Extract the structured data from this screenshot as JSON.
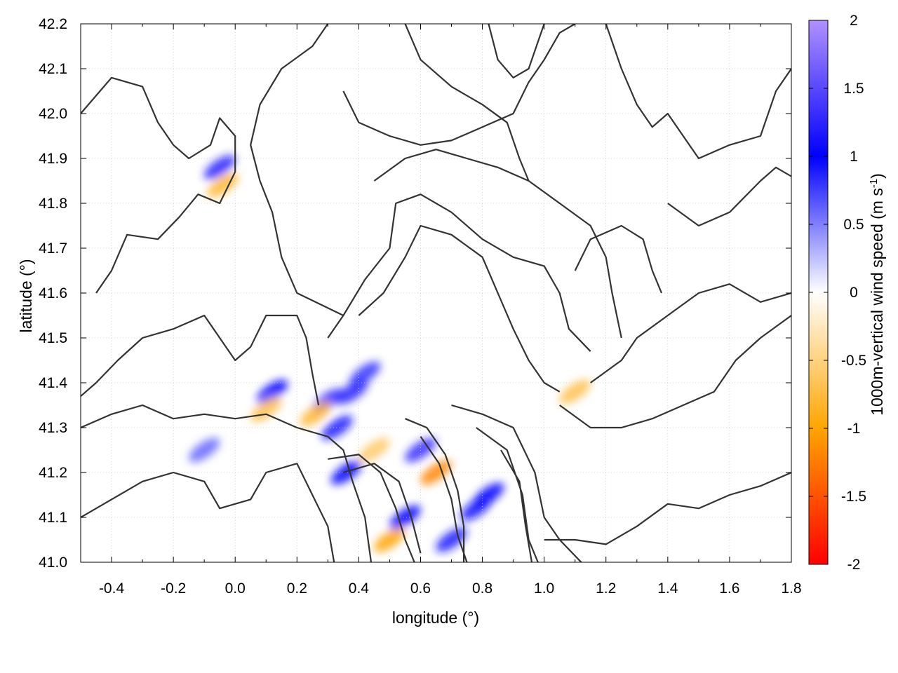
{
  "chart_data": {
    "type": "heatmap",
    "title": "",
    "xlabel": "longitude (°)",
    "ylabel": "latitude (°)",
    "xlim": [
      -0.5,
      1.8
    ],
    "ylim": [
      41.0,
      42.2
    ],
    "x_ticks": [
      "-0.4",
      "-0.2",
      "0.0",
      "0.2",
      "0.4",
      "0.6",
      "0.8",
      "1.0",
      "1.2",
      "1.4",
      "1.6",
      "1.8"
    ],
    "x_tick_values": [
      -0.4,
      -0.2,
      0.0,
      0.2,
      0.4,
      0.6,
      0.8,
      1.0,
      1.2,
      1.4,
      1.6,
      1.8
    ],
    "y_ticks": [
      "41.0",
      "41.1",
      "41.2",
      "41.3",
      "41.4",
      "41.5",
      "41.6",
      "41.7",
      "41.8",
      "41.9",
      "42.0",
      "42.1",
      "42.2"
    ],
    "y_tick_values": [
      41.0,
      41.1,
      41.2,
      41.3,
      41.4,
      41.5,
      41.6,
      41.7,
      41.8,
      41.9,
      42.0,
      42.1,
      42.2
    ],
    "grid": true,
    "colorbar": {
      "label_main": "1000m-vertical wind speed (m s",
      "label_sup": "-1",
      "label_end": ")",
      "range": [
        -2,
        2
      ],
      "tick_labels": [
        "2",
        "1.5",
        "1",
        "0.5",
        "0",
        "-0.5",
        "-1",
        "-1.5",
        "-2"
      ],
      "tick_values": [
        2,
        1.5,
        1,
        0.5,
        0,
        -0.5,
        -1,
        -1.5,
        -2
      ],
      "colors": [
        "#ff0000",
        "#ffa500",
        "#ffffff",
        "#0000ff",
        "#b190ff"
      ],
      "placement": "right"
    },
    "overlay": "terrain elevation contours (black)",
    "features": [
      {
        "lon": 0.33,
        "lat": 41.3,
        "w": 0.9
      },
      {
        "lon": 0.3,
        "lat": 41.36,
        "w": 1.3
      },
      {
        "lon": 0.38,
        "lat": 41.38,
        "w": 1.2
      },
      {
        "lon": 0.42,
        "lat": 41.42,
        "w": 0.8
      },
      {
        "lon": 0.36,
        "lat": 41.2,
        "w": 1.0
      },
      {
        "lon": 0.6,
        "lat": 41.25,
        "w": 1.3
      },
      {
        "lon": 0.65,
        "lat": 41.2,
        "w": -1.2
      },
      {
        "lon": 0.5,
        "lat": 41.05,
        "w": -1.0
      },
      {
        "lon": 0.55,
        "lat": 41.1,
        "w": 1.0
      },
      {
        "lon": 0.82,
        "lat": 41.15,
        "w": 1.0
      },
      {
        "lon": 0.78,
        "lat": 41.12,
        "w": 1.1
      },
      {
        "lon": -0.05,
        "lat": 41.88,
        "w": 1.2
      },
      {
        "lon": -0.04,
        "lat": 41.84,
        "w": -0.8
      },
      {
        "lon": 0.12,
        "lat": 41.38,
        "w": 1.0
      },
      {
        "lon": 0.1,
        "lat": 41.34,
        "w": -0.7
      },
      {
        "lon": -0.1,
        "lat": 41.25,
        "w": 0.6
      },
      {
        "lon": 1.1,
        "lat": 41.38,
        "w": -0.7
      },
      {
        "lon": 0.26,
        "lat": 41.33,
        "w": -0.8
      },
      {
        "lon": 0.7,
        "lat": 41.05,
        "w": 0.9
      },
      {
        "lon": 0.45,
        "lat": 41.25,
        "w": -0.6
      }
    ],
    "contours": [
      [
        [
          -0.5,
          42.0
        ],
        [
          -0.4,
          42.08
        ],
        [
          -0.3,
          42.06
        ],
        [
          -0.25,
          41.98
        ],
        [
          -0.2,
          41.93
        ],
        [
          -0.15,
          41.9
        ],
        [
          -0.08,
          41.93
        ],
        [
          -0.05,
          41.99
        ],
        [
          0.0,
          41.95
        ],
        [
          0.0,
          41.87
        ],
        [
          -0.05,
          41.8
        ],
        [
          -0.12,
          41.82
        ],
        [
          -0.18,
          41.77
        ],
        [
          -0.25,
          41.72
        ],
        [
          -0.35,
          41.73
        ],
        [
          -0.4,
          41.65
        ],
        [
          -0.45,
          41.6
        ]
      ],
      [
        [
          -0.5,
          41.3
        ],
        [
          -0.4,
          41.33
        ],
        [
          -0.3,
          41.35
        ],
        [
          -0.2,
          41.32
        ],
        [
          -0.1,
          41.33
        ],
        [
          0.0,
          41.32
        ],
        [
          0.1,
          41.33
        ],
        [
          0.2,
          41.3
        ],
        [
          0.3,
          41.28
        ],
        [
          0.35,
          41.25
        ],
        [
          0.38,
          41.18
        ],
        [
          0.42,
          41.1
        ],
        [
          0.44,
          41.0
        ]
      ],
      [
        [
          -0.5,
          41.1
        ],
        [
          -0.4,
          41.14
        ],
        [
          -0.3,
          41.18
        ],
        [
          -0.2,
          41.2
        ],
        [
          -0.1,
          41.18
        ],
        [
          -0.05,
          41.12
        ],
        [
          0.05,
          41.14
        ],
        [
          0.1,
          41.2
        ],
        [
          0.2,
          41.22
        ],
        [
          0.25,
          41.15
        ],
        [
          0.3,
          41.08
        ],
        [
          0.32,
          41.0
        ]
      ],
      [
        [
          0.3,
          41.23
        ],
        [
          0.4,
          41.24
        ],
        [
          0.47,
          41.2
        ],
        [
          0.52,
          41.12
        ],
        [
          0.55,
          41.05
        ],
        [
          0.58,
          41.0
        ]
      ],
      [
        [
          0.35,
          41.2
        ],
        [
          0.45,
          41.22
        ],
        [
          0.53,
          41.18
        ],
        [
          0.57,
          41.1
        ],
        [
          0.6,
          41.02
        ]
      ],
      [
        [
          0.55,
          41.32
        ],
        [
          0.62,
          41.3
        ],
        [
          0.68,
          41.24
        ],
        [
          0.72,
          41.16
        ],
        [
          0.74,
          41.08
        ],
        [
          0.74,
          41.0
        ]
      ],
      [
        [
          0.6,
          41.28
        ],
        [
          0.66,
          41.22
        ],
        [
          0.7,
          41.14
        ],
        [
          0.72,
          41.06
        ],
        [
          0.75,
          41.0
        ]
      ],
      [
        [
          0.7,
          41.35
        ],
        [
          0.8,
          41.33
        ],
        [
          0.9,
          41.3
        ],
        [
          0.97,
          41.2
        ],
        [
          1.0,
          41.1
        ],
        [
          1.05,
          41.05
        ],
        [
          1.12,
          41.0
        ]
      ],
      [
        [
          0.78,
          41.3
        ],
        [
          0.88,
          41.25
        ],
        [
          0.93,
          41.15
        ],
        [
          0.95,
          41.05
        ],
        [
          0.98,
          41.0
        ]
      ],
      [
        [
          0.86,
          41.25
        ],
        [
          0.92,
          41.18
        ],
        [
          0.94,
          41.08
        ],
        [
          0.96,
          41.0
        ]
      ],
      [
        [
          1.0,
          41.05
        ],
        [
          1.1,
          41.05
        ],
        [
          1.2,
          41.04
        ],
        [
          1.3,
          41.08
        ],
        [
          1.4,
          41.13
        ],
        [
          1.5,
          41.12
        ],
        [
          1.6,
          41.15
        ],
        [
          1.7,
          41.17
        ],
        [
          1.8,
          41.2
        ]
      ],
      [
        [
          1.05,
          41.35
        ],
        [
          1.15,
          41.3
        ],
        [
          1.25,
          41.3
        ],
        [
          1.35,
          41.32
        ],
        [
          1.45,
          41.35
        ],
        [
          1.55,
          41.38
        ],
        [
          1.62,
          41.45
        ],
        [
          1.7,
          41.5
        ],
        [
          1.8,
          41.55
        ]
      ],
      [
        [
          1.15,
          41.4
        ],
        [
          1.25,
          41.45
        ],
        [
          1.3,
          41.5
        ],
        [
          1.4,
          41.55
        ],
        [
          1.5,
          41.6
        ],
        [
          1.6,
          41.62
        ],
        [
          1.7,
          41.58
        ],
        [
          1.8,
          41.6
        ]
      ],
      [
        [
          0.27,
          41.35
        ],
        [
          0.25,
          41.42
        ],
        [
          0.23,
          41.5
        ],
        [
          0.2,
          41.55
        ],
        [
          0.1,
          41.55
        ],
        [
          0.05,
          41.48
        ],
        [
          0.0,
          41.45
        ],
        [
          -0.05,
          41.5
        ],
        [
          -0.1,
          41.55
        ],
        [
          -0.2,
          41.52
        ],
        [
          -0.3,
          41.5
        ],
        [
          -0.38,
          41.45
        ],
        [
          -0.45,
          41.4
        ],
        [
          -0.5,
          41.37
        ]
      ],
      [
        [
          0.3,
          41.5
        ],
        [
          0.35,
          41.55
        ],
        [
          0.42,
          41.63
        ],
        [
          0.5,
          41.7
        ],
        [
          0.52,
          41.8
        ],
        [
          0.6,
          41.82
        ],
        [
          0.7,
          41.78
        ],
        [
          0.8,
          41.72
        ],
        [
          0.9,
          41.68
        ],
        [
          1.0,
          41.66
        ],
        [
          1.05,
          41.6
        ],
        [
          1.08,
          41.52
        ],
        [
          1.15,
          41.47
        ]
      ],
      [
        [
          0.4,
          41.55
        ],
        [
          0.48,
          41.6
        ],
        [
          0.55,
          41.68
        ],
        [
          0.6,
          41.75
        ],
        [
          0.7,
          41.73
        ],
        [
          0.8,
          41.68
        ],
        [
          0.85,
          41.6
        ],
        [
          0.9,
          41.52
        ],
        [
          0.95,
          41.45
        ],
        [
          1.0,
          41.4
        ],
        [
          1.05,
          41.38
        ]
      ],
      [
        [
          0.35,
          41.55
        ],
        [
          0.2,
          41.6
        ],
        [
          0.15,
          41.68
        ],
        [
          0.12,
          41.78
        ],
        [
          0.08,
          41.85
        ],
        [
          0.05,
          41.93
        ],
        [
          0.08,
          42.02
        ],
        [
          0.15,
          42.1
        ],
        [
          0.25,
          42.15
        ],
        [
          0.3,
          42.2
        ]
      ],
      [
        [
          0.45,
          41.85
        ],
        [
          0.55,
          41.9
        ],
        [
          0.65,
          41.92
        ],
        [
          0.75,
          41.9
        ],
        [
          0.85,
          41.88
        ],
        [
          0.95,
          41.85
        ],
        [
          1.05,
          41.8
        ],
        [
          1.15,
          41.75
        ],
        [
          1.2,
          41.68
        ],
        [
          1.22,
          41.6
        ],
        [
          1.25,
          41.5
        ]
      ],
      [
        [
          0.35,
          42.05
        ],
        [
          0.4,
          41.98
        ],
        [
          0.5,
          41.95
        ],
        [
          0.6,
          41.93
        ],
        [
          0.7,
          41.94
        ],
        [
          0.8,
          41.97
        ],
        [
          0.9,
          42.0
        ],
        [
          0.95,
          42.07
        ],
        [
          1.0,
          42.12
        ],
        [
          1.05,
          42.18
        ],
        [
          1.1,
          42.2
        ]
      ],
      [
        [
          0.55,
          42.2
        ],
        [
          0.6,
          42.12
        ],
        [
          0.7,
          42.06
        ],
        [
          0.8,
          42.02
        ],
        [
          0.88,
          41.98
        ],
        [
          0.92,
          41.9
        ],
        [
          0.95,
          41.85
        ]
      ],
      [
        [
          0.82,
          42.2
        ],
        [
          0.85,
          42.12
        ],
        [
          0.9,
          42.08
        ],
        [
          0.95,
          42.1
        ],
        [
          0.98,
          42.16
        ],
        [
          1.0,
          42.2
        ]
      ],
      [
        [
          1.2,
          42.2
        ],
        [
          1.25,
          42.1
        ],
        [
          1.3,
          42.02
        ],
        [
          1.35,
          41.97
        ],
        [
          1.4,
          42.0
        ],
        [
          1.45,
          41.95
        ],
        [
          1.5,
          41.9
        ],
        [
          1.6,
          41.93
        ],
        [
          1.7,
          41.95
        ],
        [
          1.75,
          42.05
        ],
        [
          1.8,
          42.1
        ]
      ],
      [
        [
          1.4,
          41.8
        ],
        [
          1.5,
          41.75
        ],
        [
          1.6,
          41.78
        ],
        [
          1.7,
          41.85
        ],
        [
          1.75,
          41.88
        ],
        [
          1.8,
          41.86
        ]
      ],
      [
        [
          1.1,
          41.65
        ],
        [
          1.15,
          41.72
        ],
        [
          1.25,
          41.75
        ],
        [
          1.32,
          41.72
        ],
        [
          1.35,
          41.65
        ],
        [
          1.38,
          41.6
        ]
      ]
    ]
  }
}
